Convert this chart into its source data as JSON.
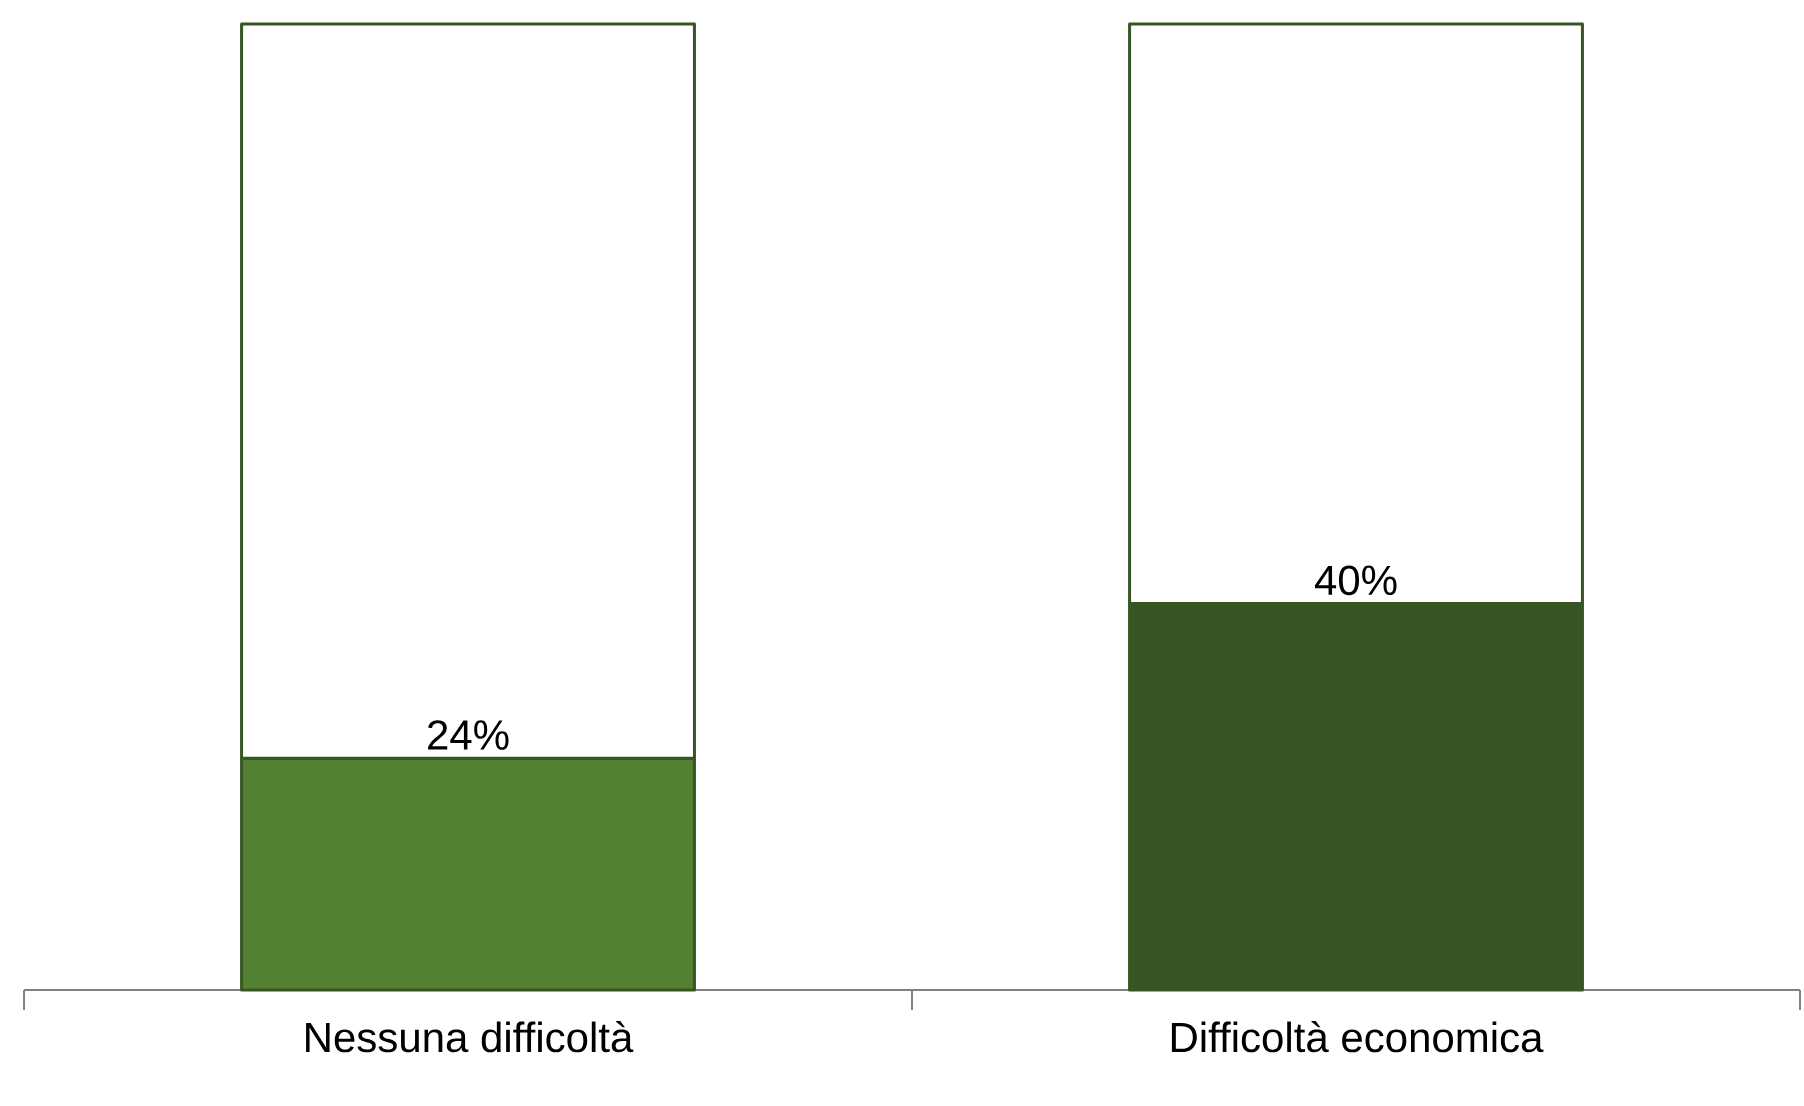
{
  "chart_data": {
    "type": "bar",
    "stacked": true,
    "categories": [
      "Nessuna difficoltà",
      "Difficoltà economica"
    ],
    "series": [
      {
        "colors": [
          "#548235",
          "#375623"
        ],
        "values": [
          24,
          40
        ],
        "value_labels": [
          "24%",
          "40%"
        ]
      },
      {
        "color": "#ffffff",
        "values": [
          76,
          60
        ]
      }
    ]
  }
}
